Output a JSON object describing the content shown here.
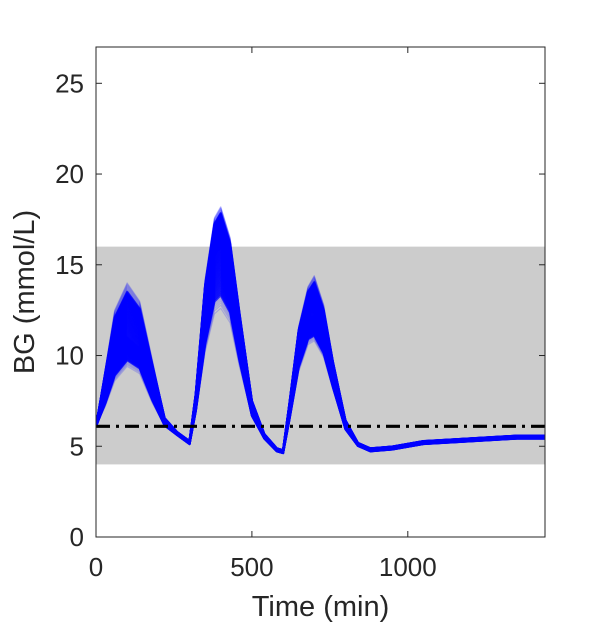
{
  "chart_data": {
    "type": "line",
    "xlabel": "Time (min)",
    "ylabel": "BG (mmol/L)",
    "xlim": [
      0,
      1440
    ],
    "ylim": [
      0,
      27
    ],
    "xticks": [
      0,
      500,
      1000
    ],
    "yticks": [
      0,
      5,
      10,
      15,
      20,
      25
    ],
    "target_band": {
      "lower": 4,
      "upper": 16,
      "color": "#cccccc"
    },
    "reference_line": {
      "y": 6.1,
      "style": "dash-dot",
      "color": "#000000"
    },
    "series_color": "#0000ff",
    "series_count_approx": 100,
    "envelope": {
      "x": [
        0,
        30,
        60,
        100,
        140,
        180,
        220,
        260,
        300,
        320,
        350,
        380,
        400,
        430,
        460,
        500,
        540,
        580,
        600,
        620,
        650,
        680,
        700,
        730,
        760,
        800,
        840,
        880,
        950,
        1050,
        1150,
        1250,
        1350,
        1440
      ],
      "lower": [
        6.1,
        7.2,
        8.6,
        9.4,
        9.0,
        7.4,
        6.1,
        5.6,
        5.1,
        6.8,
        10.2,
        12.3,
        12.6,
        11.8,
        9.4,
        6.6,
        5.4,
        4.7,
        4.6,
        6.3,
        9.1,
        10.6,
        10.8,
        9.9,
        8.1,
        5.9,
        5.0,
        4.7,
        4.8,
        5.1,
        5.2,
        5.3,
        5.4,
        5.4
      ],
      "median": [
        6.1,
        8.0,
        10.0,
        11.0,
        10.4,
        8.2,
        6.3,
        5.7,
        5.2,
        7.4,
        12.2,
        15.5,
        16.0,
        14.5,
        11.0,
        7.0,
        5.5,
        4.8,
        4.7,
        6.9,
        10.3,
        12.0,
        12.2,
        11.0,
        8.8,
        6.1,
        5.1,
        4.8,
        4.9,
        5.2,
        5.3,
        5.4,
        5.5,
        5.5
      ],
      "upper": [
        6.1,
        9.3,
        12.5,
        14.0,
        13.0,
        9.8,
        6.6,
        5.8,
        5.3,
        8.0,
        14.2,
        17.6,
        18.2,
        16.5,
        12.6,
        7.6,
        5.7,
        4.9,
        4.8,
        7.4,
        11.6,
        13.8,
        14.4,
        12.8,
        9.8,
        6.5,
        5.2,
        4.9,
        5.0,
        5.3,
        5.4,
        5.5,
        5.6,
        5.6
      ]
    }
  }
}
